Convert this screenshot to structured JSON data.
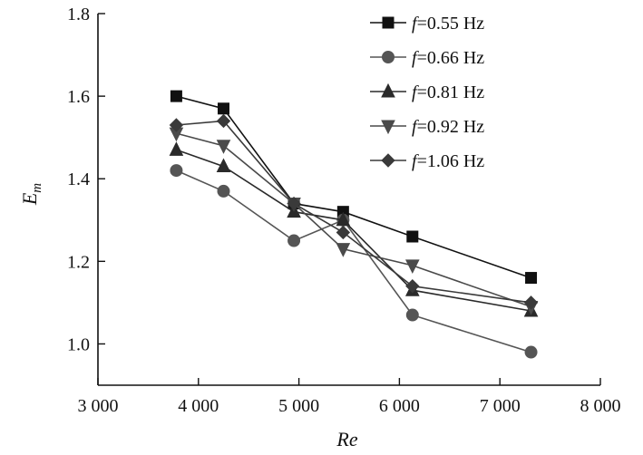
{
  "chart_data": {
    "type": "line",
    "title": "",
    "xlabel": "Re",
    "ylabel_main": "E",
    "ylabel_sub": "m",
    "xlim": [
      3000,
      8000
    ],
    "ylim": [
      0.9,
      1.8
    ],
    "xticks": [
      3000,
      4000,
      5000,
      6000,
      7000,
      8000
    ],
    "xtick_labels": [
      "3 000",
      "4 000",
      "5 000",
      "6 000",
      "7 000",
      "8 000"
    ],
    "yticks": [
      1.0,
      1.2,
      1.4,
      1.6,
      1.8
    ],
    "ytick_labels": [
      "1.0",
      "1.2",
      "1.4",
      "1.6",
      "1.8"
    ],
    "grid": false,
    "legend_position": "top-right",
    "x": [
      3780,
      4250,
      4950,
      5440,
      6130,
      7310
    ],
    "series": [
      {
        "name": "f=0.55 Hz",
        "f_symbol": "f",
        "f_rest": "=0.55 Hz",
        "marker": "square",
        "color": "#111111",
        "values": [
          1.6,
          1.57,
          1.34,
          1.32,
          1.26,
          1.16
        ]
      },
      {
        "name": "f=0.66 Hz",
        "f_symbol": "f",
        "f_rest": "=0.66 Hz",
        "marker": "circle",
        "color": "#555555",
        "values": [
          1.42,
          1.37,
          1.25,
          1.3,
          1.07,
          0.98
        ]
      },
      {
        "name": "f=0.81 Hz",
        "f_symbol": "f",
        "f_rest": "=0.81 Hz",
        "marker": "triangle-up",
        "color": "#2a2a2a",
        "values": [
          1.47,
          1.43,
          1.32,
          1.3,
          1.13,
          1.08
        ]
      },
      {
        "name": "f=0.92 Hz",
        "f_symbol": "f",
        "f_rest": "=0.92 Hz",
        "marker": "triangle-down",
        "color": "#4a4a4a",
        "values": [
          1.51,
          1.48,
          1.34,
          1.23,
          1.19,
          1.09
        ]
      },
      {
        "name": "f=1.06 Hz",
        "f_symbol": "f",
        "f_rest": "=1.06 Hz",
        "marker": "diamond",
        "color": "#3a3a3a",
        "values": [
          1.53,
          1.54,
          1.34,
          1.27,
          1.14,
          1.1
        ]
      }
    ]
  }
}
